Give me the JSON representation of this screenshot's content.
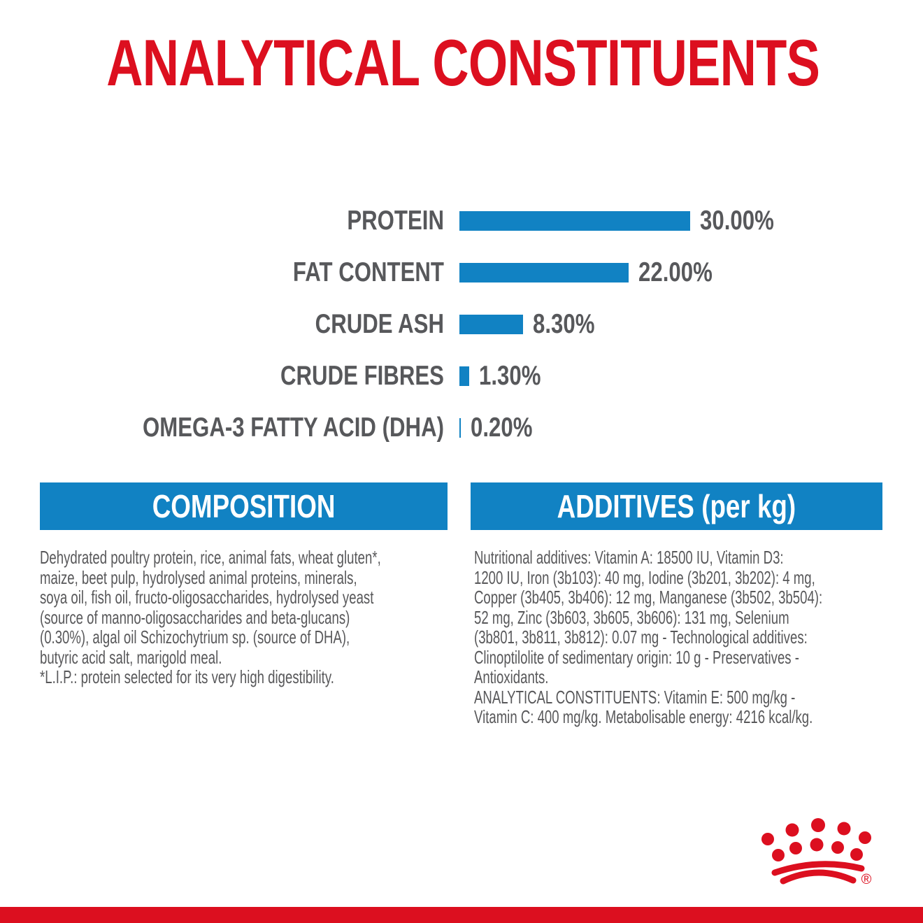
{
  "title": "ANALYTICAL CONSTITUENTS",
  "chart_data": {
    "type": "bar",
    "orientation": "horizontal",
    "title": "ANALYTICAL CONSTITUENTS",
    "categories": [
      "PROTEIN",
      "FAT CONTENT",
      "CRUDE ASH",
      "CRUDE FIBRES",
      "OMEGA-3 FATTY ACID (DHA)"
    ],
    "values": [
      30.0,
      22.0,
      8.3,
      1.3,
      0.2
    ],
    "value_labels": [
      "30.00%",
      "22.00%",
      "8.30%",
      "1.30%",
      "0.20%"
    ],
    "unit": "%",
    "xlim": [
      0,
      30
    ],
    "grid": false,
    "legend": false,
    "bar_color": "#1182c3",
    "label_color": "#57585b"
  },
  "sections": {
    "composition": {
      "header": "COMPOSITION",
      "body": "Dehydrated poultry protein, rice, animal fats, wheat gluten*,\nmaize, beet pulp, hydrolysed animal proteins, minerals,\nsoya oil, fish oil, fructo-oligosaccharides, hydrolysed yeast\n(source of manno-oligosaccharides and beta-glucans)\n(0.30%), algal oil Schizochytrium sp. (source of DHA),\nbutyric acid salt, marigold meal.\n*L.I.P.: protein selected for its very high digestibility."
    },
    "additives": {
      "header": "ADDITIVES (per kg)",
      "body": "Nutritional additives: Vitamin A: 18500 IU, Vitamin D3:\n1200 IU, Iron (3b103): 40 mg, Iodine (3b201, 3b202): 4 mg,\nCopper (3b405, 3b406): 12 mg, Manganese (3b502, 3b504):\n52 mg, Zinc (3b603, 3b605, 3b606): 131 mg, Selenium\n(3b801, 3b811, 3b812): 0.07 mg - Technological additives:\nClinoptilolite of sedimentary origin: 10 g - Preservatives -\nAntioxidants.\nANALYTICAL CONSTITUENTS: Vitamin E: 500 mg/kg -\nVitamin C: 400 mg/kg. Metabolisable energy: 4216 kcal/kg."
    }
  },
  "branding": {
    "logo": "royal-canin-crown",
    "registered_mark": "®",
    "brand_red": "#dc0f1f",
    "accent_blue": "#1182c3",
    "text_gray": "#58585a"
  }
}
